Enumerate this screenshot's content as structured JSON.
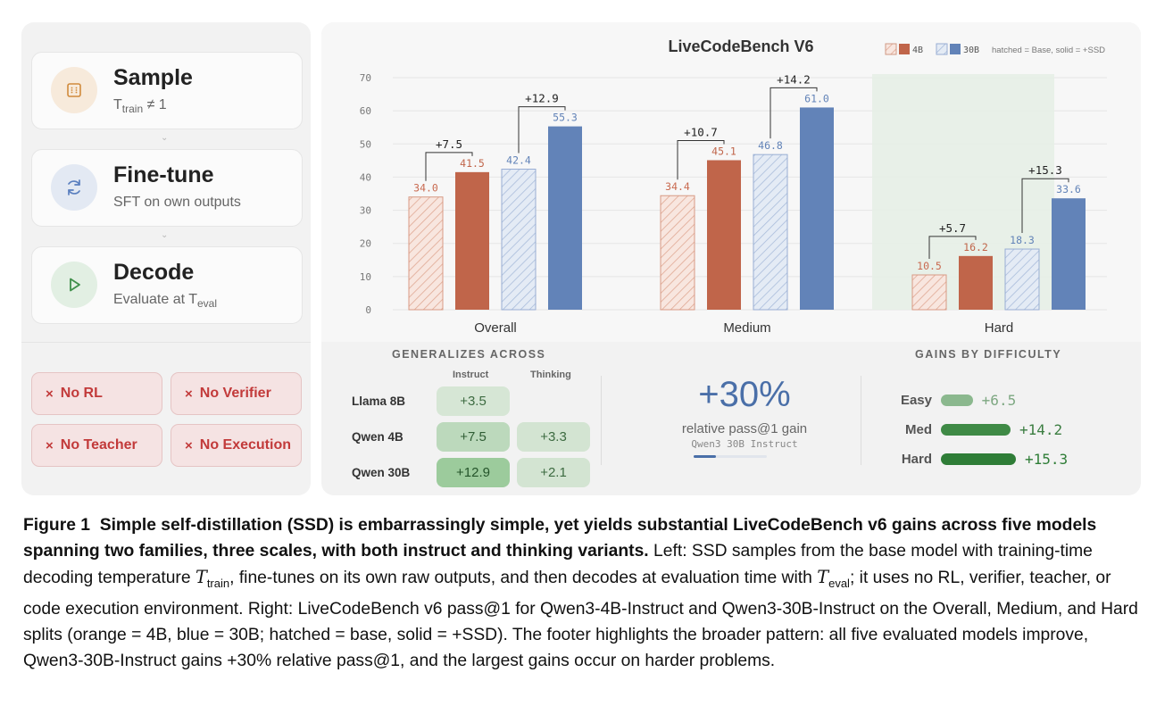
{
  "steps": [
    {
      "title": "Sample",
      "sub_main": "T",
      "sub_subscript": "train",
      "sub_rest": " ≠ 1",
      "icon": "grid-icon"
    },
    {
      "title": "Fine-tune",
      "sub_main": "SFT on own outputs",
      "icon": "refresh-icon"
    },
    {
      "title": "Decode",
      "sub_main": "Evaluate at T",
      "sub_subscript": "eval",
      "icon": "play-icon"
    }
  ],
  "constraints": [
    {
      "label": "No RL"
    },
    {
      "label": "No Verifier"
    },
    {
      "label": "No Teacher"
    },
    {
      "label": "No Execution"
    }
  ],
  "constraint_symbol": "×",
  "legend": {
    "label_4b": "4B",
    "label_30b": "30B",
    "note": "hatched = Base, solid = +SSD"
  },
  "chart_data": {
    "type": "bar",
    "title": "LiveCodeBench V6",
    "categories": [
      "Overall",
      "Medium",
      "Hard"
    ],
    "series": [
      {
        "name": "4B Base",
        "values": [
          34.0,
          34.4,
          10.5
        ],
        "color": "#c0654a",
        "hatched": true
      },
      {
        "name": "4B +SSD",
        "values": [
          41.5,
          45.1,
          16.2
        ],
        "color": "#c0654a",
        "hatched": false
      },
      {
        "name": "30B Base",
        "values": [
          42.4,
          46.8,
          18.3
        ],
        "color": "#6283b8",
        "hatched": true
      },
      {
        "name": "30B +SSD",
        "values": [
          55.3,
          61.0,
          33.6
        ],
        "color": "#6283b8",
        "hatched": false
      }
    ],
    "labels_4b_base": [
      "34.0",
      "34.4",
      "10.5"
    ],
    "labels_4b_ssd": [
      "41.5",
      "45.1",
      "16.2"
    ],
    "labels_30b_base": [
      "42.4",
      "46.8",
      "18.3"
    ],
    "labels_30b_ssd": [
      "55.3",
      "61.0",
      "33.6"
    ],
    "gains_4b": [
      "+7.5",
      "+10.7",
      "+5.7"
    ],
    "gains_30b": [
      "+12.9",
      "+14.2",
      "+15.3"
    ],
    "ylim": [
      0,
      70
    ],
    "yticks": [
      0,
      10,
      20,
      30,
      40,
      50,
      60,
      70
    ],
    "highlight_category": "Hard",
    "xlabel": "",
    "ylabel": ""
  },
  "generalizes": {
    "title": "GENERALIZES ACROSS",
    "col_instruct": "Instruct",
    "col_thinking": "Thinking",
    "rows": [
      {
        "model": "Llama 8B",
        "instruct": "+3.5",
        "thinking": ""
      },
      {
        "model": "Qwen 4B",
        "instruct": "+7.5",
        "thinking": "+3.3"
      },
      {
        "model": "Qwen 30B",
        "instruct": "+12.9",
        "thinking": "+2.1"
      }
    ]
  },
  "headline": {
    "value": "+30%",
    "desc": "relative pass@1 gain",
    "model": "Qwen3 30B Instruct",
    "progress_fraction": 0.3
  },
  "difficulty": {
    "title": "GAINS BY DIFFICULTY",
    "max_gain": 15.3,
    "rows": [
      {
        "label": "Easy",
        "gain": 6.5,
        "gain_text": "+6.5",
        "color": "#8bb88e",
        "text_color": "#7ea882"
      },
      {
        "label": "Med",
        "gain": 14.2,
        "gain_text": "+14.2",
        "color": "#3f8a46",
        "text_color": "#3b7d41"
      },
      {
        "label": "Hard",
        "gain": 15.3,
        "gain_text": "+15.3",
        "color": "#2f7d37",
        "text_color": "#2f7d37"
      }
    ]
  },
  "caption": {
    "figure_label": "Figure 1",
    "bold_text": "Simple self-distillation (SSD) is embarrassingly simple, yet yields substantial LiveCodeBench v6 gains across five models spanning two families, three scales, with both instruct and thinking variants.",
    "part1": "Left: SSD samples from the base model with training-time decoding temperature",
    "t_symbol": "T",
    "train_sub": "train",
    "part2": ", fine-tunes on its own raw outputs, and then decodes at evaluation time with",
    "eval_sub": "eval",
    "part3": "; it uses no RL, verifier, teacher, or code execution environment. Right: LiveCodeBench v6 pass@1 for Qwen3-4B-Instruct and Qwen3-30B-Instruct on the Overall, Medium, and Hard splits (orange = 4B, blue = 30B; hatched = base, solid = +SSD). The footer highlights the broader pattern: all five evaluated models improve, Qwen3-30B-Instruct gains +30% relative pass@1, and the largest gains occur on harder problems."
  }
}
